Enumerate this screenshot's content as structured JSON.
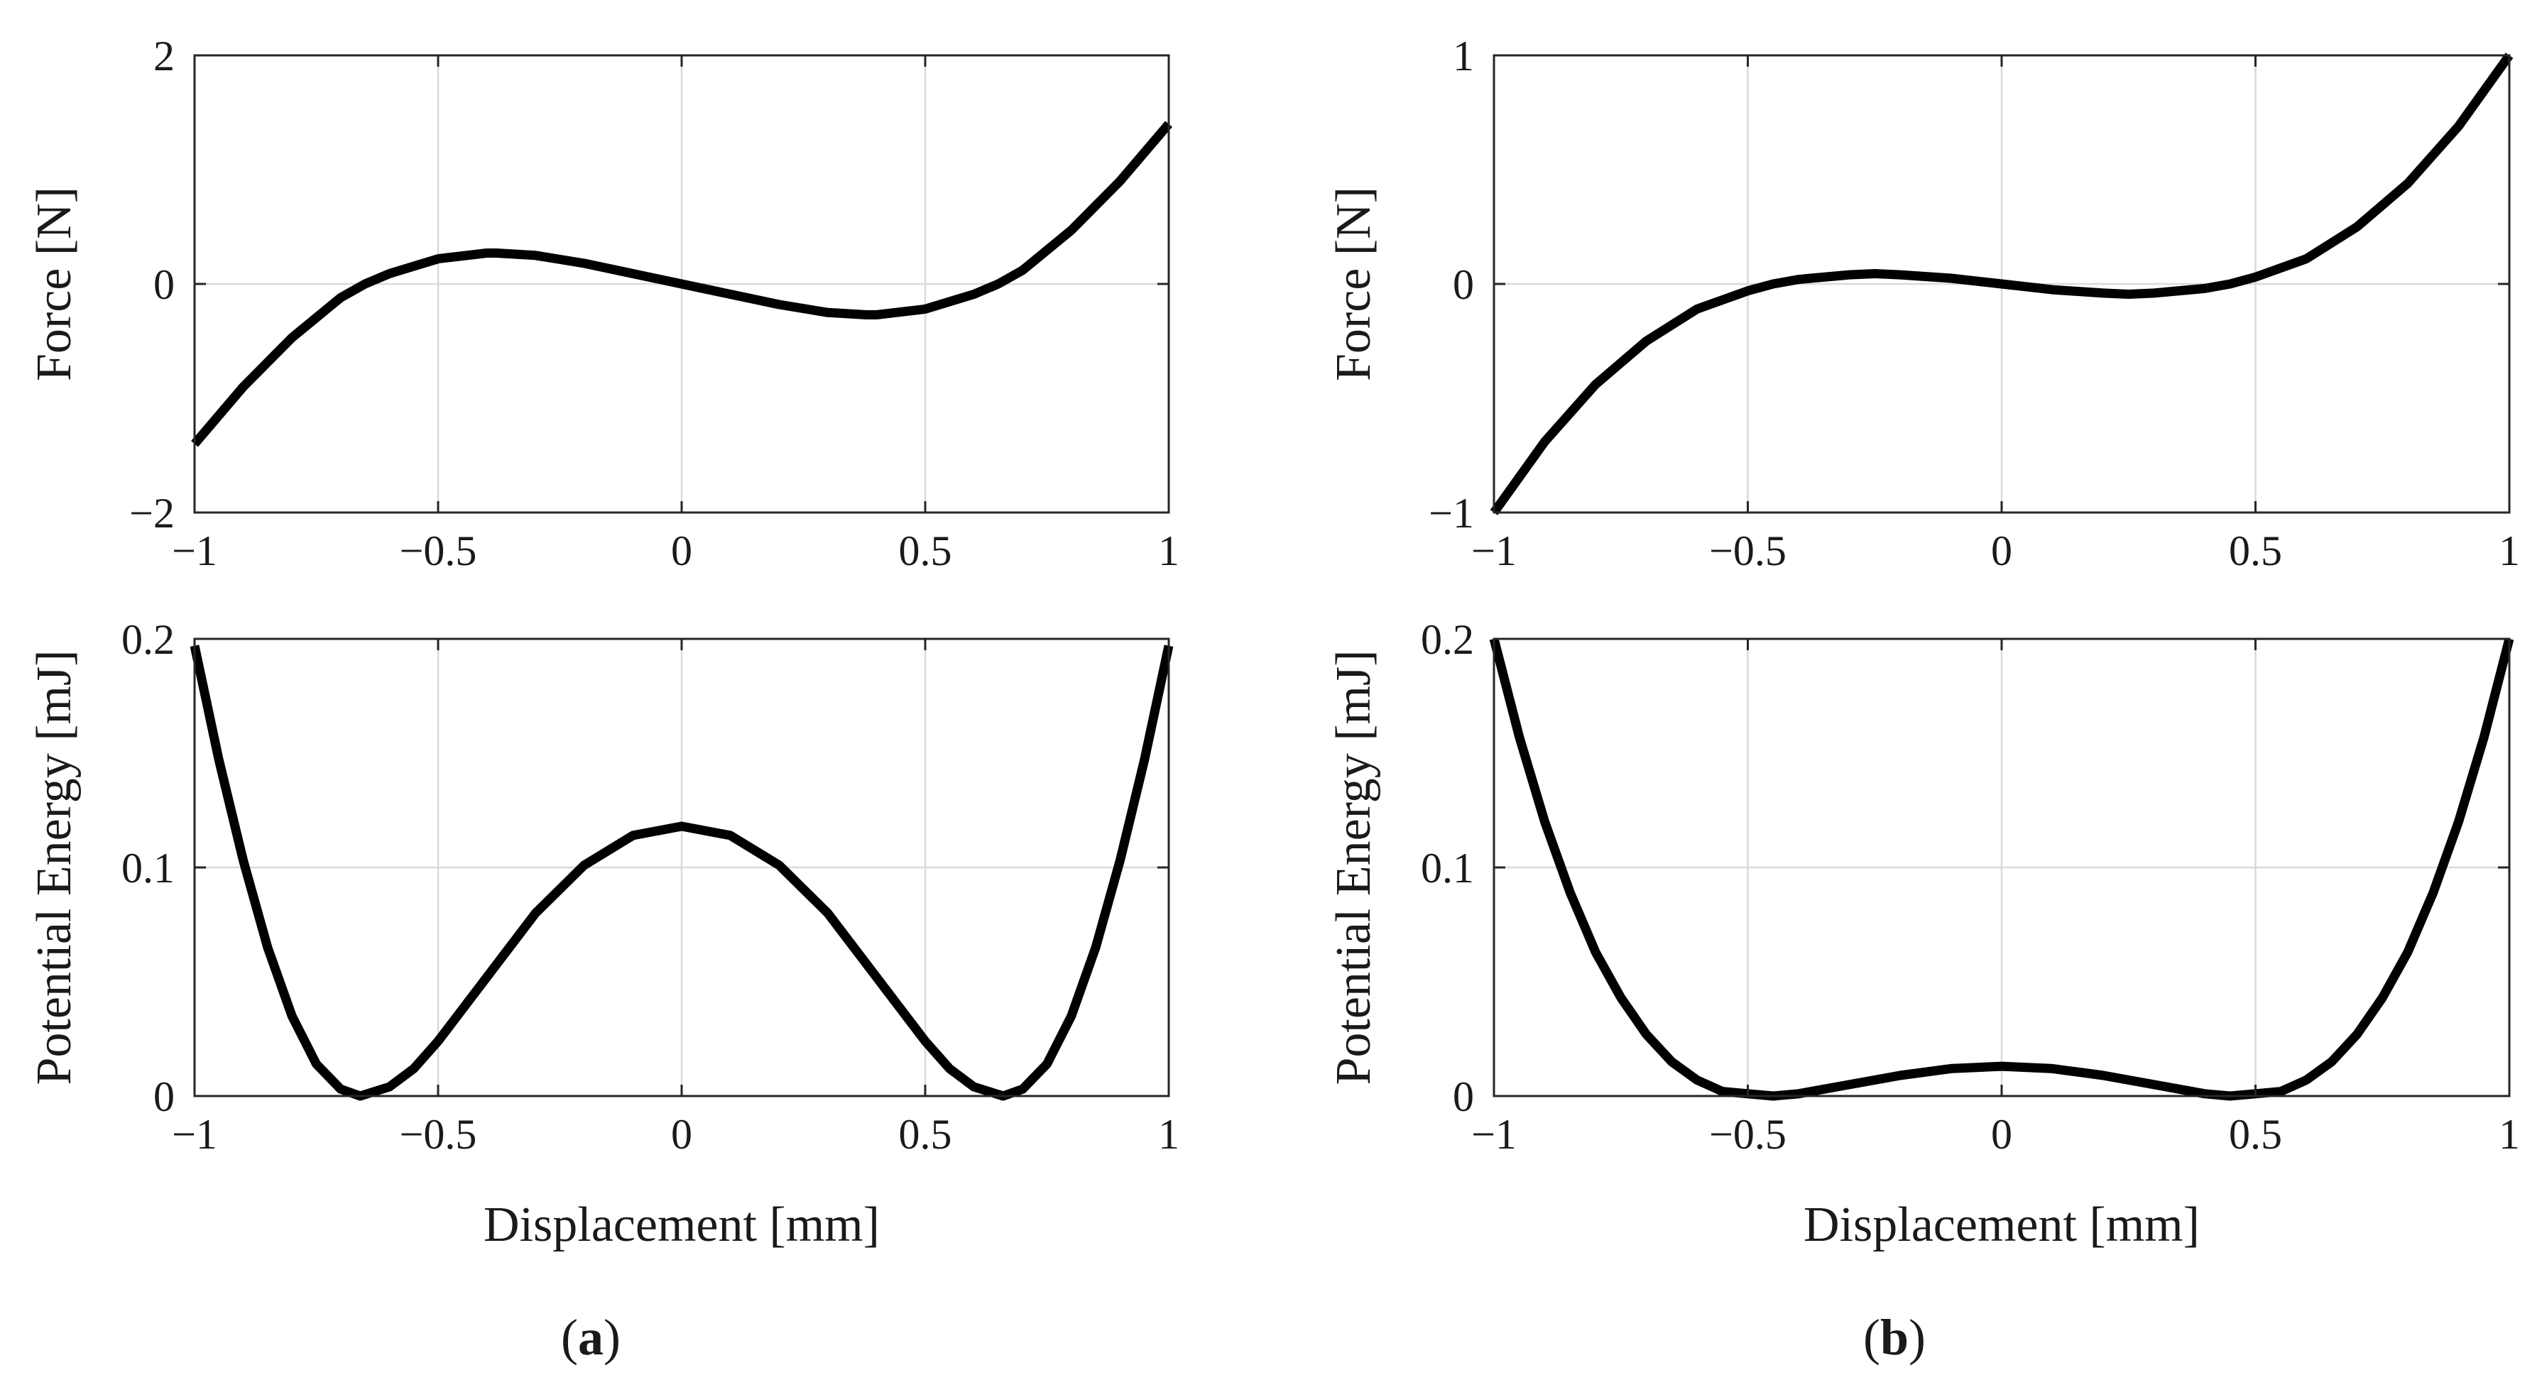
{
  "chart_data": [
    {
      "id": "a-force",
      "panel": "a",
      "type": "line",
      "title": "",
      "xlabel": "",
      "ylabel": "Force [N]",
      "xlim": [
        -1,
        1
      ],
      "ylim": [
        -2,
        2
      ],
      "grid": true,
      "xticks": [
        -1,
        -0.5,
        0,
        0.5,
        1
      ],
      "xtick_labels": [
        "−1",
        "−0.5",
        "0",
        "0.5",
        "1"
      ],
      "yticks": [
        -2,
        0,
        2
      ],
      "ytick_labels": [
        "−2",
        "0",
        "2"
      ],
      "series": [
        {
          "name": "force",
          "x": [
            -1,
            -0.9,
            -0.8,
            -0.7,
            -0.65,
            -0.6,
            -0.5,
            -0.4,
            -0.38,
            -0.3,
            -0.2,
            -0.1,
            0,
            0.1,
            0.2,
            0.3,
            0.38,
            0.4,
            0.5,
            0.6,
            0.65,
            0.7,
            0.8,
            0.9,
            1
          ],
          "y": [
            -1.4,
            -0.9,
            -0.47,
            -0.12,
            0,
            0.09,
            0.22,
            0.27,
            0.27,
            0.25,
            0.18,
            0.09,
            0,
            -0.09,
            -0.18,
            -0.25,
            -0.27,
            -0.27,
            -0.22,
            -0.09,
            0,
            0.12,
            0.47,
            0.9,
            1.4
          ]
        }
      ]
    },
    {
      "id": "a-energy",
      "panel": "a",
      "type": "line",
      "title": "",
      "xlabel": "Displacement [mm]",
      "ylabel": "Potential Energy [mJ]",
      "xlim": [
        -1,
        1
      ],
      "ylim": [
        0,
        0.2
      ],
      "grid": true,
      "xticks": [
        -1,
        -0.5,
        0,
        0.5,
        1
      ],
      "xtick_labels": [
        "−1",
        "−0.5",
        "0",
        "0.5",
        "1"
      ],
      "yticks": [
        0,
        0.1,
        0.2
      ],
      "ytick_labels": [
        "0",
        "0.1",
        "0.2"
      ],
      "series": [
        {
          "name": "potential energy",
          "x": [
            -1,
            -0.95,
            -0.9,
            -0.85,
            -0.8,
            -0.75,
            -0.7,
            -0.66,
            -0.6,
            -0.55,
            -0.5,
            -0.4,
            -0.3,
            -0.2,
            -0.1,
            0,
            0.1,
            0.2,
            0.3,
            0.4,
            0.5,
            0.55,
            0.6,
            0.66,
            0.7,
            0.75,
            0.8,
            0.85,
            0.9,
            0.95,
            1
          ],
          "y": [
            0.197,
            0.147,
            0.103,
            0.065,
            0.035,
            0.014,
            0.003,
            0,
            0.004,
            0.012,
            0.024,
            0.052,
            0.08,
            0.101,
            0.114,
            0.118,
            0.114,
            0.101,
            0.08,
            0.052,
            0.024,
            0.012,
            0.004,
            0,
            0.003,
            0.014,
            0.035,
            0.065,
            0.103,
            0.147,
            0.197
          ]
        }
      ]
    },
    {
      "id": "b-force",
      "panel": "b",
      "type": "line",
      "title": "",
      "xlabel": "",
      "ylabel": "Force [N]",
      "xlim": [
        -1,
        1
      ],
      "ylim": [
        -1,
        1
      ],
      "grid": true,
      "xticks": [
        -1,
        -0.5,
        0,
        0.5,
        1
      ],
      "xtick_labels": [
        "−1",
        "−0.5",
        "0",
        "0.5",
        "1"
      ],
      "yticks": [
        -1,
        0,
        1
      ],
      "ytick_labels": [
        "−1",
        "0",
        "1"
      ],
      "series": [
        {
          "name": "force",
          "x": [
            -1,
            -0.9,
            -0.8,
            -0.7,
            -0.6,
            -0.5,
            -0.45,
            -0.4,
            -0.3,
            -0.25,
            -0.2,
            -0.1,
            0,
            0.1,
            0.2,
            0.25,
            0.3,
            0.4,
            0.45,
            0.5,
            0.6,
            0.7,
            0.8,
            0.9,
            1
          ],
          "y": [
            -1,
            -0.69,
            -0.44,
            -0.25,
            -0.11,
            -0.03,
            0,
            0.02,
            0.04,
            0.045,
            0.04,
            0.025,
            0,
            -0.025,
            -0.04,
            -0.045,
            -0.04,
            -0.02,
            0,
            0.03,
            0.11,
            0.25,
            0.44,
            0.69,
            1
          ]
        }
      ]
    },
    {
      "id": "b-energy",
      "panel": "b",
      "type": "line",
      "title": "",
      "xlabel": "Displacement [mm]",
      "ylabel": "Potential Energy [mJ]",
      "xlim": [
        -1,
        1
      ],
      "ylim": [
        0,
        0.2
      ],
      "grid": true,
      "xticks": [
        -1,
        -0.5,
        0,
        0.5,
        1
      ],
      "xtick_labels": [
        "−1",
        "−0.5",
        "0",
        "0.5",
        "1"
      ],
      "yticks": [
        0,
        0.1,
        0.2
      ],
      "ytick_labels": [
        "0",
        "0.1",
        "0.2"
      ],
      "series": [
        {
          "name": "potential energy",
          "x": [
            -1,
            -0.95,
            -0.9,
            -0.85,
            -0.8,
            -0.75,
            -0.7,
            -0.65,
            -0.6,
            -0.55,
            -0.5,
            -0.45,
            -0.4,
            -0.3,
            -0.2,
            -0.1,
            0,
            0.1,
            0.2,
            0.3,
            0.4,
            0.45,
            0.5,
            0.55,
            0.6,
            0.65,
            0.7,
            0.75,
            0.8,
            0.85,
            0.9,
            0.95,
            1
          ],
          "y": [
            0.2,
            0.157,
            0.12,
            0.089,
            0.063,
            0.043,
            0.027,
            0.015,
            0.007,
            0.002,
            0.001,
            0,
            0.001,
            0.005,
            0.009,
            0.012,
            0.013,
            0.012,
            0.009,
            0.005,
            0.001,
            0,
            0.001,
            0.002,
            0.007,
            0.015,
            0.027,
            0.043,
            0.063,
            0.089,
            0.12,
            0.157,
            0.2
          ]
        }
      ]
    }
  ],
  "panels": [
    {
      "id": "a",
      "label_open": "(",
      "label_letter": "a",
      "label_close": ")"
    },
    {
      "id": "b",
      "label_open": "(",
      "label_letter": "b",
      "label_close": ")"
    }
  ]
}
